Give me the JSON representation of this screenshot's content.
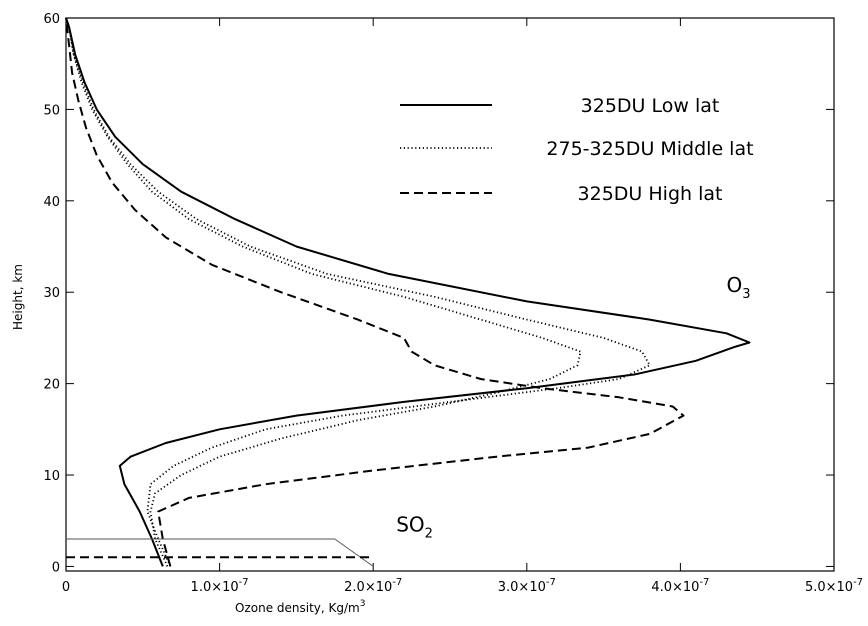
{
  "chart_data": {
    "type": "line",
    "title": "",
    "xlabel": "Ozone density, Kg/m",
    "xlabel_superscript": "3",
    "ylabel": "Height, km",
    "xlim": [
      0,
      5e-07
    ],
    "ylim": [
      -0.5,
      60
    ],
    "grid": false,
    "legend_position": "top-right",
    "x_ticks": [
      {
        "value": 0,
        "label": "0"
      },
      {
        "value": 1e-07,
        "label": "1.0×10",
        "exp": "-7"
      },
      {
        "value": 2e-07,
        "label": "2.0×10",
        "exp": "-7"
      },
      {
        "value": 3e-07,
        "label": "3.0×10",
        "exp": "-7"
      },
      {
        "value": 4e-07,
        "label": "4.0×10",
        "exp": "-7"
      },
      {
        "value": 5e-07,
        "label": "5.0×10",
        "exp": "-7"
      }
    ],
    "y_ticks": [
      {
        "value": 0,
        "label": "0"
      },
      {
        "value": 10,
        "label": "10"
      },
      {
        "value": 20,
        "label": "20"
      },
      {
        "value": 30,
        "label": "30"
      },
      {
        "value": 40,
        "label": "40"
      },
      {
        "value": 50,
        "label": "50"
      },
      {
        "value": 60,
        "label": "60"
      }
    ],
    "series": [
      {
        "name": "325DU Low lat",
        "style": "solid",
        "points": [
          [
            6.3e-08,
            0
          ],
          [
            5.6e-08,
            3
          ],
          [
            4.8e-08,
            6
          ],
          [
            3.8e-08,
            9
          ],
          [
            3.5e-08,
            11
          ],
          [
            4.2e-08,
            12
          ],
          [
            6.5e-08,
            13.5
          ],
          [
            1e-07,
            15
          ],
          [
            1.5e-07,
            16.5
          ],
          [
            2.2e-07,
            18
          ],
          [
            3e-07,
            19.5
          ],
          [
            3.7e-07,
            21
          ],
          [
            4.1e-07,
            22.5
          ],
          [
            4.35e-07,
            24
          ],
          [
            4.45e-07,
            24.5
          ],
          [
            4.3e-07,
            25.5
          ],
          [
            3.8e-07,
            27
          ],
          [
            3e-07,
            29
          ],
          [
            2.1e-07,
            32
          ],
          [
            1.5e-07,
            35
          ],
          [
            1.1e-07,
            38
          ],
          [
            7.5e-08,
            41
          ],
          [
            5e-08,
            44
          ],
          [
            3.2e-08,
            47
          ],
          [
            2e-08,
            50
          ],
          [
            1.2e-08,
            53
          ],
          [
            6e-09,
            56
          ],
          [
            2e-09,
            59
          ],
          [
            0,
            60
          ]
        ]
      },
      {
        "name": "275-325DU Middle lat",
        "style": "dotted",
        "points": [
          [
            6.8e-08,
            0
          ],
          [
            6e-08,
            3
          ],
          [
            5.3e-08,
            6
          ],
          [
            5.5e-08,
            9
          ],
          [
            7e-08,
            11
          ],
          [
            9.5e-08,
            13
          ],
          [
            1.3e-07,
            15
          ],
          [
            1.8e-07,
            16.5
          ],
          [
            2.5e-07,
            18
          ],
          [
            3.2e-07,
            19.5
          ],
          [
            3.6e-07,
            20.5
          ],
          [
            3.8e-07,
            22
          ],
          [
            3.75e-07,
            23.5
          ],
          [
            3.5e-07,
            25
          ],
          [
            3e-07,
            27
          ],
          [
            2.4e-07,
            29.5
          ],
          [
            1.7e-07,
            32
          ],
          [
            1.2e-07,
            35
          ],
          [
            8.5e-08,
            38
          ],
          [
            6e-08,
            41
          ],
          [
            4.2e-08,
            44
          ],
          [
            2.8e-08,
            47
          ],
          [
            1.8e-08,
            50
          ],
          [
            1.1e-08,
            53
          ],
          [
            5e-09,
            56
          ],
          [
            2e-09,
            59
          ],
          [
            0,
            60
          ]
        ]
      },
      {
        "name": "",
        "style": "dotted",
        "points": [
          [
            6.6e-08,
            0
          ],
          [
            5.8e-08,
            3
          ],
          [
            5.5e-08,
            6
          ],
          [
            5.8e-08,
            8
          ],
          [
            7.5e-08,
            10
          ],
          [
            1e-07,
            12
          ],
          [
            1.4e-07,
            14
          ],
          [
            1.9e-07,
            16
          ],
          [
            2.4e-07,
            17.5
          ],
          [
            2.8e-07,
            19
          ],
          [
            3.15e-07,
            20.5
          ],
          [
            3.33e-07,
            22
          ],
          [
            3.35e-07,
            23.5
          ],
          [
            3.1e-07,
            25
          ],
          [
            2.7e-07,
            27
          ],
          [
            2.2e-07,
            29.5
          ],
          [
            1.6e-07,
            32
          ],
          [
            1.15e-07,
            35
          ],
          [
            8e-08,
            38
          ],
          [
            5.6e-08,
            41
          ],
          [
            4e-08,
            44
          ],
          [
            2.7e-08,
            47
          ],
          [
            1.7e-08,
            50
          ],
          [
            1e-08,
            53
          ],
          [
            5e-09,
            56
          ],
          [
            2e-09,
            59
          ],
          [
            0,
            60
          ]
        ]
      },
      {
        "name": "325DU High lat",
        "style": "dashed",
        "points": [
          [
            6.8e-08,
            0
          ],
          [
            6.3e-08,
            3
          ],
          [
            6e-08,
            6
          ],
          [
            8e-08,
            7.5
          ],
          [
            1.3e-07,
            9
          ],
          [
            2e-07,
            10.5
          ],
          [
            2.8e-07,
            12
          ],
          [
            3.4e-07,
            13
          ],
          [
            3.8e-07,
            14.5
          ],
          [
            4.02e-07,
            16.5
          ],
          [
            3.95e-07,
            17.5
          ],
          [
            3.6e-07,
            18.5
          ],
          [
            3.1e-07,
            19.5
          ],
          [
            2.7e-07,
            20.5
          ],
          [
            2.4e-07,
            22
          ],
          [
            2.25e-07,
            23.5
          ],
          [
            2.2e-07,
            25
          ],
          [
            1.9e-07,
            27
          ],
          [
            1.4e-07,
            30
          ],
          [
            9.5e-08,
            33
          ],
          [
            6.5e-08,
            36
          ],
          [
            4.5e-08,
            39
          ],
          [
            3e-08,
            42
          ],
          [
            2e-08,
            45
          ],
          [
            1.3e-08,
            48
          ],
          [
            8e-09,
            51
          ],
          [
            4e-09,
            54
          ],
          [
            2e-09,
            57
          ],
          [
            0,
            60
          ]
        ]
      }
    ],
    "so2_series": [
      {
        "style": "thin",
        "points": [
          [
            0,
            3
          ],
          [
            1.75e-07,
            3
          ],
          [
            2e-07,
            0
          ]
        ]
      },
      {
        "style": "dashed",
        "points": [
          [
            0,
            1
          ],
          [
            2e-07,
            1
          ]
        ]
      }
    ],
    "annotations": [
      {
        "text": "O",
        "sub": "3",
        "x": 4.3e-07,
        "y": 30
      },
      {
        "text": "SO",
        "sub": "2",
        "x": 2.15e-07,
        "y": 3.8
      }
    ]
  },
  "legend": {
    "items": [
      {
        "label": "325DU Low lat",
        "style": "solid"
      },
      {
        "label": "275-325DU Middle lat",
        "style": "dotted"
      },
      {
        "label": "325DU High lat",
        "style": "dashed"
      }
    ]
  }
}
